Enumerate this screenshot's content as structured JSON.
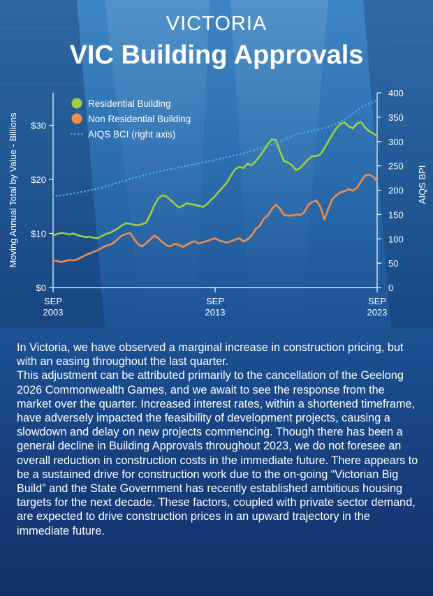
{
  "header": {
    "supertitle": "VICTORIA",
    "title": "VIC Building Approvals"
  },
  "chart_data": {
    "type": "line",
    "title": "",
    "ylabel": "Moving Annual Total by Value - Billions",
    "ylabel_right": "AIQS BPI",
    "x_ticks": [
      {
        "x": 2003.75,
        "label": [
          "SEP",
          "2003"
        ]
      },
      {
        "x": 2013.75,
        "label": [
          "SEP",
          "2013"
        ]
      },
      {
        "x": 2023.75,
        "label": [
          "SEP",
          "2023"
        ]
      }
    ],
    "xlim": [
      2003.75,
      2023.75
    ],
    "ylim": [
      0,
      36
    ],
    "ylim_right": [
      0,
      400
    ],
    "y_ticks": [
      0,
      10,
      20,
      30
    ],
    "y_tick_labels": [
      "$0",
      "$10",
      "$20",
      "$30"
    ],
    "y_ticks_right": [
      0,
      50,
      100,
      150,
      200,
      250,
      300,
      350,
      400
    ],
    "legend": {
      "position": "top-left"
    },
    "series": [
      {
        "name": "Residential Building",
        "axis": "left",
        "color": "#9fd03f",
        "style": "solid",
        "x": [
          2003.75,
          2004.0,
          2004.25,
          2004.5,
          2004.75,
          2005.0,
          2005.25,
          2005.5,
          2005.75,
          2006.0,
          2006.25,
          2006.5,
          2006.75,
          2007.0,
          2007.25,
          2007.5,
          2007.75,
          2008.0,
          2008.25,
          2008.5,
          2008.75,
          2009.0,
          2009.25,
          2009.5,
          2009.75,
          2010.0,
          2010.25,
          2010.5,
          2010.75,
          2011.0,
          2011.25,
          2011.5,
          2011.75,
          2012.0,
          2012.25,
          2012.5,
          2012.75,
          2013.0,
          2013.25,
          2013.5,
          2013.75,
          2014.0,
          2014.25,
          2014.5,
          2014.75,
          2015.0,
          2015.25,
          2015.5,
          2015.75,
          2016.0,
          2016.25,
          2016.5,
          2016.75,
          2017.0,
          2017.25,
          2017.5,
          2017.75,
          2018.0,
          2018.25,
          2018.5,
          2018.75,
          2019.0,
          2019.25,
          2019.5,
          2019.75,
          2020.0,
          2020.25,
          2020.5,
          2020.75,
          2021.0,
          2021.25,
          2021.5,
          2021.75,
          2022.0,
          2022.25,
          2022.5,
          2022.75,
          2023.0,
          2023.25,
          2023.5,
          2023.75
        ],
        "values": [
          9.6,
          9.9,
          10.1,
          10.0,
          9.8,
          10.0,
          9.7,
          9.5,
          9.3,
          9.4,
          9.2,
          9.1,
          9.5,
          9.9,
          10.1,
          10.5,
          10.9,
          11.5,
          11.9,
          11.8,
          11.6,
          11.5,
          11.7,
          12.0,
          13.5,
          15.2,
          16.5,
          17.1,
          16.8,
          16.2,
          15.5,
          14.8,
          15.1,
          15.6,
          15.4,
          15.3,
          15.1,
          14.9,
          15.4,
          16.2,
          16.9,
          17.8,
          18.6,
          19.5,
          20.8,
          21.9,
          22.3,
          22.1,
          22.9,
          22.6,
          23.3,
          24.3,
          25.3,
          26.5,
          27.4,
          27.3,
          25.2,
          23.4,
          23.1,
          22.6,
          21.7,
          22.1,
          22.9,
          23.7,
          24.3,
          24.3,
          24.6,
          25.8,
          27.1,
          28.4,
          29.5,
          30.3,
          30.5,
          29.8,
          29.4,
          30.3,
          30.6,
          29.6,
          28.9,
          28.5,
          28.0
        ]
      },
      {
        "name": "Non Residential Building",
        "axis": "left",
        "color": "#f08e4c",
        "style": "solid",
        "x": [
          2003.75,
          2004.0,
          2004.25,
          2004.5,
          2004.75,
          2005.0,
          2005.25,
          2005.5,
          2005.75,
          2006.0,
          2006.25,
          2006.5,
          2006.75,
          2007.0,
          2007.25,
          2007.5,
          2007.75,
          2008.0,
          2008.25,
          2008.5,
          2008.75,
          2009.0,
          2009.25,
          2009.5,
          2009.75,
          2010.0,
          2010.25,
          2010.5,
          2010.75,
          2011.0,
          2011.25,
          2011.5,
          2011.75,
          2012.0,
          2012.25,
          2012.5,
          2012.75,
          2013.0,
          2013.25,
          2013.5,
          2013.75,
          2014.0,
          2014.25,
          2014.5,
          2014.75,
          2015.0,
          2015.25,
          2015.5,
          2015.75,
          2016.0,
          2016.25,
          2016.5,
          2016.75,
          2017.0,
          2017.25,
          2017.5,
          2017.75,
          2018.0,
          2018.25,
          2018.5,
          2018.75,
          2019.0,
          2019.25,
          2019.5,
          2019.75,
          2020.0,
          2020.25,
          2020.5,
          2020.75,
          2021.0,
          2021.25,
          2021.5,
          2021.75,
          2022.0,
          2022.25,
          2022.5,
          2022.75,
          2023.0,
          2023.25,
          2023.5,
          2023.75
        ],
        "values": [
          5.0,
          4.9,
          4.7,
          4.9,
          5.1,
          5.0,
          5.2,
          5.6,
          6.0,
          6.3,
          6.6,
          6.9,
          7.3,
          7.7,
          7.9,
          8.3,
          9.0,
          9.6,
          9.9,
          10.1,
          9.0,
          8.0,
          7.6,
          8.2,
          8.9,
          9.6,
          9.1,
          8.4,
          7.8,
          7.6,
          8.1,
          7.9,
          7.5,
          7.9,
          8.3,
          8.6,
          8.1,
          8.4,
          8.6,
          8.9,
          9.1,
          8.7,
          8.5,
          8.3,
          8.6,
          8.9,
          9.1,
          8.5,
          8.9,
          9.6,
          10.8,
          11.4,
          12.7,
          13.3,
          14.5,
          15.3,
          14.6,
          13.4,
          13.3,
          13.3,
          13.5,
          13.4,
          13.9,
          15.3,
          15.8,
          16.1,
          14.9,
          12.6,
          14.7,
          16.4,
          17.1,
          17.6,
          17.8,
          18.2,
          17.9,
          18.4,
          19.6,
          20.7,
          20.9,
          20.5,
          19.7
        ]
      },
      {
        "name": "AIQS BCI (right axis)",
        "axis": "right",
        "color": "#3fb1e4",
        "style": "dotted",
        "x": [
          2003.75,
          2004.75,
          2005.75,
          2006.75,
          2007.75,
          2008.75,
          2009.75,
          2010.75,
          2011.75,
          2012.75,
          2013.75,
          2014.75,
          2015.75,
          2016.75,
          2017.75,
          2018.75,
          2019.75,
          2020.75,
          2021.75,
          2022.75,
          2023.75
        ],
        "values": [
          187,
          192,
          198,
          205,
          215,
          226,
          234,
          242,
          248,
          255,
          262,
          270,
          278,
          288,
          300,
          315,
          322,
          330,
          345,
          370,
          385
        ]
      }
    ]
  },
  "body_text": [
    "In Victoria, we have observed a marginal increase in construction pricing, but with an easing throughout the last quarter.",
    "This adjustment can be attributed primarily to the cancellation of the Geelong 2026 Commonwealth Games, and we await to see the response from the market over the quarter. Increased interest rates, within a shortened timeframe, have adversely impacted the feasibility of development projects, causing a slowdown and delay on new projects commencing. Though there has been a general decline in Building Approvals throughout 2023, we do not foresee an overall reduction in construction costs in the immediate future. There appears to be a sustained drive for construction work due to the on-going “Victorian Big Build” and the State Government has recently established ambitious housing targets for the next decade. These factors, coupled with private sector demand, are expected to drive construction prices in an upward trajectory in the immediate future."
  ]
}
